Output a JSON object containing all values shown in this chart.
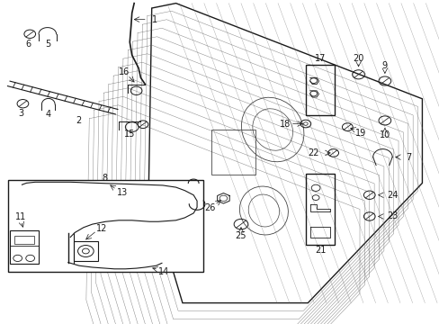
{
  "bg_color": "#ffffff",
  "fig_width": 4.89,
  "fig_height": 3.6,
  "dpi": 100,
  "lc": "#1a1a1a",
  "lw": 0.7,
  "door_outline": {
    "x": [
      0.345,
      0.395,
      0.96,
      0.96,
      0.72,
      0.42,
      0.34,
      0.335,
      0.345
    ],
    "y": [
      0.97,
      0.99,
      0.72,
      0.44,
      0.06,
      0.06,
      0.42,
      0.7,
      0.97
    ]
  },
  "hatch_lines": [
    [
      [
        0.36,
        0.4
      ],
      [
        0.97,
        0.72
      ]
    ],
    [
      [
        0.4,
        0.44
      ],
      [
        0.97,
        0.72
      ]
    ],
    [
      [
        0.44,
        0.48
      ],
      [
        0.97,
        0.72
      ]
    ],
    [
      [
        0.48,
        0.52
      ],
      [
        0.97,
        0.72
      ]
    ],
    [
      [
        0.52,
        0.56
      ],
      [
        0.97,
        0.72
      ]
    ],
    [
      [
        0.56,
        0.6
      ],
      [
        0.97,
        0.7
      ]
    ],
    [
      [
        0.6,
        0.64
      ],
      [
        0.97,
        0.68
      ]
    ],
    [
      [
        0.64,
        0.68
      ],
      [
        0.96,
        0.62
      ]
    ],
    [
      [
        0.68,
        0.72
      ],
      [
        0.94,
        0.52
      ]
    ],
    [
      [
        0.72,
        0.76
      ],
      [
        0.9,
        0.42
      ]
    ],
    [
      [
        0.76,
        0.8
      ],
      [
        0.84,
        0.32
      ]
    ],
    [
      [
        0.8,
        0.84
      ],
      [
        0.76,
        0.22
      ]
    ],
    [
      [
        0.84,
        0.88
      ],
      [
        0.68,
        0.12
      ]
    ],
    [
      [
        0.88,
        0.91
      ],
      [
        0.58,
        0.08
      ]
    ],
    [
      [
        0.91,
        0.94
      ],
      [
        0.48,
        0.08
      ]
    ],
    [
      [
        0.94,
        0.96
      ],
      [
        0.38,
        0.08
      ]
    ]
  ],
  "label_fontsize": 7,
  "label_color": "#000000"
}
